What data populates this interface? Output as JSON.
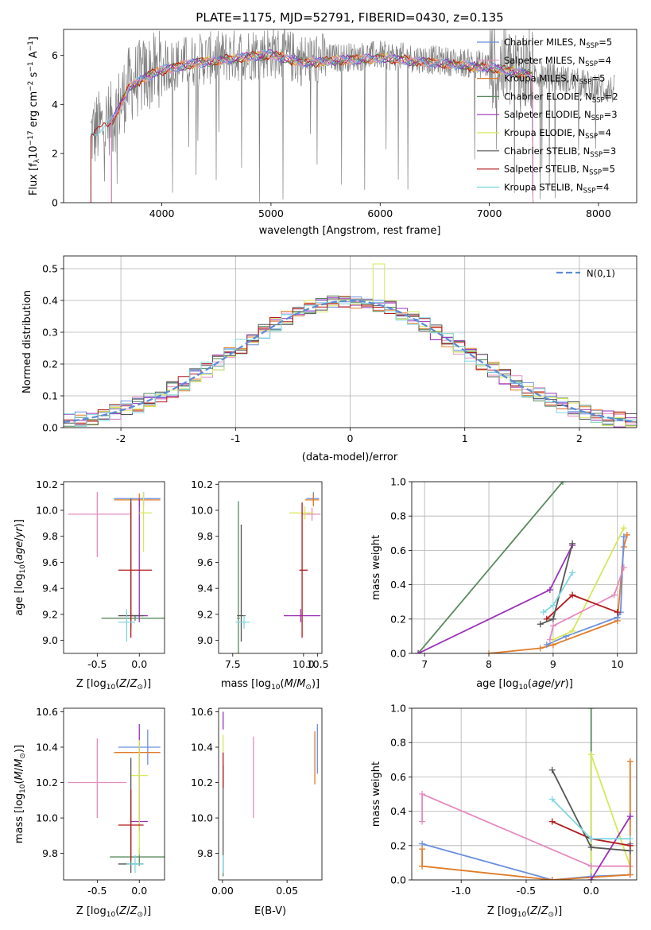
{
  "figure": {
    "title": "PLATE=1175, MJD=52791, FIBERID=0430, z=0.135"
  },
  "colors": {
    "Chabrier MILES": "#6a8fde",
    "Salpeter MILES": "#e58bbf",
    "Kroupa MILES": "#e07b29",
    "Chabrier ELODIE": "#5a8a5e",
    "Salpeter ELODIE": "#9a32b8",
    "Kroupa ELODIE": "#d6e85a",
    "Chabrier STELIB": "#555555",
    "Salpeter STELIB": "#b01a1a",
    "Kroupa STELIB": "#7fd8e0",
    "data": "#808080",
    "normal": "#5b8bd6"
  },
  "chart_data": [
    {
      "id": "spectrum",
      "type": "line",
      "title": "PLATE=1175, MJD=52791, FIBERID=0430, z=0.135",
      "xlabel": "wavelength [Angstrom, rest frame]",
      "ylabel": "Flux [f_λ 10^-17 erg cm^-2 s^-1 A^-1]",
      "xlim": [
        3100,
        8350
      ],
      "ylim": [
        0,
        7.05
      ],
      "xticks": [
        4000,
        5000,
        6000,
        7000,
        8000
      ],
      "yticks": [
        0,
        2,
        4,
        6
      ],
      "continuum": {
        "x": [
          3350,
          3550,
          3700,
          3850,
          4000,
          4300,
          4700,
          5000,
          5300,
          5600,
          6000,
          6500,
          7000,
          7400,
          7700,
          8100
        ],
        "y": [
          2.8,
          3.4,
          4.8,
          5.2,
          5.5,
          5.8,
          6.0,
          6.15,
          5.8,
          5.9,
          6.0,
          5.8,
          5.6,
          5.3,
          5.0,
          4.6
        ]
      },
      "legend": [
        {
          "label": "Chabrier MILES",
          "nssp": "5"
        },
        {
          "label": "Salpeter MILES",
          "nssp": "4"
        },
        {
          "label": "Kroupa MILES",
          "nssp": "5"
        },
        {
          "label": "Chabrier ELODIE",
          "nssp": "2"
        },
        {
          "label": "Salpeter ELODIE",
          "nssp": "3"
        },
        {
          "label": "Kroupa ELODIE",
          "nssp": "4"
        },
        {
          "label": "Chabrier STELIB",
          "nssp": "3"
        },
        {
          "label": "Salpeter STELIB",
          "nssp": "5"
        },
        {
          "label": "Kroupa STELIB",
          "nssp": "4"
        }
      ],
      "legend_placement": "right"
    },
    {
      "id": "residuals",
      "type": "step",
      "xlabel": "(data-model)/error",
      "ylabel": "Normed distribution",
      "xlim": [
        -2.5,
        2.5
      ],
      "ylim": [
        0,
        0.54
      ],
      "xticks": [
        -2,
        -1,
        0,
        1,
        2
      ],
      "yticks": [
        0.0,
        0.1,
        0.2,
        0.3,
        0.4,
        0.5
      ],
      "bin_width": 0.1,
      "legend_label": "N(0,1)",
      "legend_placement": "top-right",
      "grid": true
    },
    {
      "id": "age_Z",
      "type": "errorbar",
      "xlabel": "Z [log10(Z/Z⊙)]",
      "ylabel": "age [log10(age/yr)]",
      "xlim": [
        -0.9,
        0.3
      ],
      "ylim": [
        8.9,
        10.22
      ],
      "xticks": [
        -0.5,
        0.0
      ],
      "yticks": [
        9.0,
        9.2,
        9.4,
        9.6,
        9.8,
        10.0,
        10.2
      ],
      "points": [
        {
          "model": "Chabrier MILES",
          "x": 0.05,
          "xerr": [
            0.35,
            0.2
          ],
          "y": 10.09,
          "yerr": [
            0.05,
            0.05
          ]
        },
        {
          "model": "Salpeter MILES",
          "x": -0.5,
          "xerr": [
            0.35,
            0.4
          ],
          "y": 9.97,
          "yerr": [
            0.33,
            0.17
          ]
        },
        {
          "model": "Kroupa MILES",
          "x": 0.0,
          "xerr": [
            0.3,
            0.25
          ],
          "y": 10.08,
          "yerr": [
            0.05,
            0.05
          ]
        },
        {
          "model": "Chabrier ELODIE",
          "x": -0.05,
          "xerr": [
            0.4,
            0.35
          ],
          "y": 9.17,
          "yerr": [
            0.02,
            0.02
          ]
        },
        {
          "model": "Salpeter ELODIE",
          "x": 0.0,
          "xerr": [
            0.1,
            0.1
          ],
          "y": 9.19,
          "yerr": [
            0.05,
            0.9
          ]
        },
        {
          "model": "Kroupa ELODIE",
          "x": 0.05,
          "xerr": [
            0.05,
            0.1
          ],
          "y": 9.98,
          "yerr": [
            0.3,
            0.16
          ]
        },
        {
          "model": "Chabrier STELIB",
          "x": -0.1,
          "xerr": [
            0.15,
            0.15
          ],
          "y": 9.19,
          "yerr": [
            0.1,
            0.9
          ]
        },
        {
          "model": "Salpeter STELIB",
          "x": -0.1,
          "xerr": [
            0.15,
            0.25
          ],
          "y": 9.54,
          "yerr": [
            0.52,
            0.52
          ]
        },
        {
          "model": "Kroupa STELIB",
          "x": -0.15,
          "xerr": [
            0.1,
            0.1
          ],
          "y": 9.14,
          "yerr": [
            0.15,
            0.1
          ]
        }
      ]
    },
    {
      "id": "age_mass",
      "type": "errorbar",
      "xlabel": "mass [log10(M/M⊙)]",
      "ylabel": "",
      "xlim": [
        7.0,
        10.65
      ],
      "ylim": [
        8.9,
        10.22
      ],
      "xticks": [
        7.5,
        10.0,
        10.5
      ],
      "xtick_labels": [
        "7.5",
        "10.0",
        "10.5"
      ],
      "yticks": [
        9.0,
        9.2,
        9.4,
        9.6,
        9.8,
        10.0,
        10.2
      ],
      "points": [
        {
          "model": "Chabrier MILES",
          "x": 10.35,
          "xerr": [
            0.25,
            0.2
          ],
          "y": 10.09,
          "yerr": [
            0.05,
            0.05
          ]
        },
        {
          "model": "Salpeter MILES",
          "x": 10.3,
          "xerr": [
            0.35,
            0.3
          ],
          "y": 9.97,
          "yerr": [
            0.05,
            0.05
          ]
        },
        {
          "model": "Kroupa MILES",
          "x": 10.35,
          "xerr": [
            0.3,
            0.2
          ],
          "y": 10.08,
          "yerr": [
            0.05,
            0.05
          ]
        },
        {
          "model": "Chabrier ELODIE",
          "x": 7.7,
          "xerr": [
            0.05,
            0.05
          ],
          "y": 9.17,
          "yerr": [
            0.35,
            0.9
          ]
        },
        {
          "model": "Salpeter ELODIE",
          "x": 9.9,
          "xerr": [
            0.6,
            0.7
          ],
          "y": 9.19,
          "yerr": [
            0.05,
            0.05
          ]
        },
        {
          "model": "Kroupa ELODIE",
          "x": 10.05,
          "xerr": [
            0.55,
            0.3
          ],
          "y": 9.98,
          "yerr": [
            0.05,
            0.05
          ]
        },
        {
          "model": "Chabrier STELIB",
          "x": 7.8,
          "xerr": [
            0.15,
            0.15
          ],
          "y": 9.19,
          "yerr": [
            0.2,
            0.7
          ]
        },
        {
          "model": "Salpeter STELIB",
          "x": 9.95,
          "xerr": [
            0.1,
            0.2
          ],
          "y": 9.54,
          "yerr": [
            0.52,
            0.52
          ]
        },
        {
          "model": "Kroupa STELIB",
          "x": 7.9,
          "xerr": [
            0.3,
            0.2
          ],
          "y": 9.14,
          "yerr": [
            0.05,
            0.05
          ]
        }
      ]
    },
    {
      "id": "weight_age",
      "type": "line",
      "xlabel": "age [log10(age/yr)]",
      "ylabel": "mass weight",
      "xlim": [
        6.8,
        10.3
      ],
      "ylim": [
        0,
        1.0
      ],
      "xticks": [
        7,
        8,
        9,
        10
      ],
      "yticks": [
        0.0,
        0.2,
        0.4,
        0.6,
        0.8,
        1.0
      ],
      "grid": true,
      "series": [
        {
          "model": "Chabrier ELODIE",
          "x": [
            6.9,
            9.15
          ],
          "y": [
            0.0,
            1.0
          ]
        },
        {
          "model": "Salpeter ELODIE",
          "x": [
            6.9,
            8.95,
            9.3
          ],
          "y": [
            0.0,
            0.37,
            0.63
          ]
        },
        {
          "model": "Kroupa MILES",
          "x": [
            8.0,
            8.8,
            9.0,
            10.0,
            10.1,
            10.15
          ],
          "y": [
            0.0,
            0.03,
            0.05,
            0.19,
            0.62,
            0.69
          ]
        },
        {
          "model": "Chabrier MILES",
          "x": [
            8.9,
            9.2,
            10.0,
            10.05,
            10.1
          ],
          "y": [
            0.05,
            0.1,
            0.21,
            0.24,
            0.68
          ]
        },
        {
          "model": "Kroupa ELODIE",
          "x": [
            9.0,
            9.3,
            10.1
          ],
          "y": [
            0.08,
            0.13,
            0.73
          ]
        },
        {
          "model": "Salpeter MILES",
          "x": [
            8.95,
            9.0,
            9.95,
            10.1
          ],
          "y": [
            0.08,
            0.16,
            0.34,
            0.5
          ]
        },
        {
          "model": "Salpeter STELIB",
          "x": [
            8.9,
            9.3,
            10.0
          ],
          "y": [
            0.2,
            0.34,
            0.24
          ]
        },
        {
          "model": "Chabrier STELIB",
          "x": [
            8.8,
            9.0,
            9.3
          ],
          "y": [
            0.17,
            0.2,
            0.64
          ]
        },
        {
          "model": "Kroupa STELIB",
          "x": [
            8.85,
            9.0,
            9.3
          ],
          "y": [
            0.24,
            0.28,
            0.47
          ]
        }
      ]
    },
    {
      "id": "mass_Z",
      "type": "errorbar",
      "xlabel": "Z [log10(Z/Z⊙)]",
      "ylabel": "mass [log10(M/M⊙)]",
      "xlim": [
        -0.9,
        0.3
      ],
      "ylim": [
        9.65,
        10.62
      ],
      "xticks": [
        -0.5,
        0.0
      ],
      "yticks": [
        9.8,
        10.0,
        10.2,
        10.4,
        10.6
      ],
      "points": [
        {
          "model": "Chabrier MILES",
          "x": 0.1,
          "xerr": [
            0.35,
            0.15
          ],
          "y": 10.4,
          "yerr": [
            0.1,
            0.1
          ]
        },
        {
          "model": "Salpeter MILES",
          "x": -0.5,
          "xerr": [
            0.35,
            0.35
          ],
          "y": 10.2,
          "yerr": [
            0.2,
            0.25
          ]
        },
        {
          "model": "Kroupa MILES",
          "x": 0.0,
          "xerr": [
            0.3,
            0.25
          ],
          "y": 10.37,
          "yerr": [
            0.03,
            0.03
          ]
        },
        {
          "model": "Chabrier ELODIE",
          "x": 0.0,
          "xerr": [
            0.35,
            0.3
          ],
          "y": 9.78,
          "yerr": [
            0.05,
            0.05
          ]
        },
        {
          "model": "Salpeter ELODIE",
          "x": 0.0,
          "xerr": [
            0.1,
            0.1
          ],
          "y": 9.98,
          "yerr": [
            0.05,
            0.55
          ]
        },
        {
          "model": "Kroupa ELODIE",
          "x": 0.0,
          "xerr": [
            0.1,
            0.1
          ],
          "y": 10.24,
          "yerr": [
            0.45,
            0.2
          ]
        },
        {
          "model": "Chabrier STELIB",
          "x": -0.1,
          "xerr": [
            0.15,
            0.15
          ],
          "y": 9.74,
          "yerr": [
            0.05,
            0.6
          ]
        },
        {
          "model": "Salpeter STELIB",
          "x": -0.1,
          "xerr": [
            0.15,
            0.15
          ],
          "y": 9.96,
          "yerr": [
            0.2,
            0.2
          ]
        },
        {
          "model": "Kroupa STELIB",
          "x": -0.05,
          "xerr": [
            0.1,
            0.1
          ],
          "y": 9.74,
          "yerr": [
            0.05,
            0.05
          ]
        }
      ]
    },
    {
      "id": "mass_EBV",
      "type": "errorbar",
      "xlabel": "E(B-V)",
      "ylabel": "",
      "xlim": [
        -0.003,
        0.077
      ],
      "ylim": [
        9.65,
        10.62
      ],
      "xticks": [
        0.0,
        0.05
      ],
      "xtick_labels": [
        "0.00",
        "0.05"
      ],
      "yticks": [
        9.8,
        10.0,
        10.2,
        10.4,
        10.6
      ],
      "points": [
        {
          "model": "Chabrier MILES",
          "x": 0.0735,
          "xerr": [
            0,
            0
          ],
          "y": 10.39,
          "yerr": [
            0.14,
            0.14
          ]
        },
        {
          "model": "Salpeter MILES",
          "x": 0.024,
          "xerr": [
            0,
            0
          ],
          "y": 10.23,
          "yerr": [
            0.23,
            0.23
          ]
        },
        {
          "model": "Kroupa MILES",
          "x": 0.0715,
          "xerr": [
            0,
            0
          ],
          "y": 10.34,
          "yerr": [
            0.15,
            0.15
          ]
        },
        {
          "model": "Chabrier ELODIE",
          "x": 0.0005,
          "xerr": [
            0,
            0
          ],
          "y": 9.72,
          "yerr": [
            0.05,
            0.05
          ]
        },
        {
          "model": "Salpeter ELODIE",
          "x": 0.0005,
          "xerr": [
            0,
            0
          ],
          "y": 10.55,
          "yerr": [
            0.05,
            0.05
          ]
        },
        {
          "model": "Kroupa ELODIE",
          "x": 0.0005,
          "xerr": [
            0,
            0
          ],
          "y": 10.42,
          "yerr": [
            0.05,
            0.05
          ]
        },
        {
          "model": "Chabrier STELIB",
          "x": 0.0005,
          "xerr": [
            0,
            0
          ],
          "y": 10.0,
          "yerr": [
            0.3,
            0.3
          ]
        },
        {
          "model": "Salpeter STELIB",
          "x": 0.0005,
          "xerr": [
            0,
            0
          ],
          "y": 10.27,
          "yerr": [
            0.1,
            0.1
          ]
        },
        {
          "model": "Kroupa STELIB",
          "x": 0.0005,
          "xerr": [
            0,
            0
          ],
          "y": 9.74,
          "yerr": [
            0.05,
            0.05
          ]
        }
      ]
    },
    {
      "id": "weight_Z",
      "type": "line",
      "xlabel": "Z [log10(Z/Z⊙)]",
      "ylabel": "mass weight",
      "xlim": [
        -1.38,
        0.35
      ],
      "ylim": [
        0,
        1.0
      ],
      "xticks": [
        -1.0,
        -0.5,
        0.0
      ],
      "yticks": [
        0.0,
        0.2,
        0.4,
        0.6,
        0.8,
        1.0
      ],
      "grid": true,
      "series": [
        {
          "model": "Chabrier ELODIE",
          "x": [
            0.0,
            0.0
          ],
          "y": [
            1.0,
            0.0
          ]
        },
        {
          "model": "Kroupa ELODIE",
          "x": [
            0.0,
            0.0,
            0.3
          ],
          "y": [
            0.0,
            0.73,
            0.08
          ]
        },
        {
          "model": "Salpeter MILES",
          "x": [
            -1.3,
            -1.3,
            0.0,
            0.3
          ],
          "y": [
            0.34,
            0.5,
            0.08,
            0.08
          ]
        },
        {
          "model": "Chabrier MILES",
          "x": [
            -1.3,
            -0.3,
            0.0,
            0.3,
            0.3
          ],
          "y": [
            0.21,
            0.0,
            0.02,
            0.03,
            0.21
          ]
        },
        {
          "model": "Kroupa MILES",
          "x": [
            -1.3,
            -1.3,
            -0.3,
            0.3,
            0.3
          ],
          "y": [
            0.18,
            0.08,
            0.0,
            0.03,
            0.69
          ]
        },
        {
          "model": "Salpeter ELODIE",
          "x": [
            0.0,
            0.3
          ],
          "y": [
            0.0,
            0.37
          ]
        },
        {
          "model": "Salpeter STELIB",
          "x": [
            -0.3,
            0.0,
            0.3
          ],
          "y": [
            0.34,
            0.24,
            0.2
          ]
        },
        {
          "model": "Chabrier STELIB",
          "x": [
            -0.3,
            0.0,
            0.3
          ],
          "y": [
            0.64,
            0.19,
            0.17
          ]
        },
        {
          "model": "Kroupa STELIB",
          "x": [
            -0.3,
            0.0,
            0.3
          ],
          "y": [
            0.47,
            0.24,
            0.24
          ]
        }
      ]
    }
  ]
}
